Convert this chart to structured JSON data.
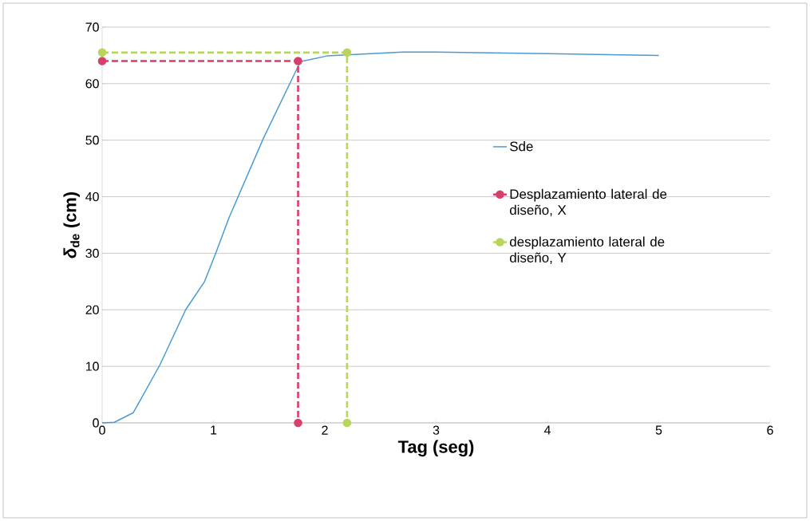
{
  "chart_data": {
    "type": "line",
    "xlabel": "Tag (seg)",
    "ylabel": "*δ*$_{de}$ (cm)",
    "xlim": [
      0,
      6
    ],
    "xticks": [
      0,
      1,
      2,
      3,
      4,
      5,
      6
    ],
    "ylim": [
      0,
      70
    ],
    "yticks": [
      0,
      10,
      20,
      30,
      40,
      50,
      60,
      70
    ],
    "grid": "y",
    "legend": "right",
    "series": [
      {
        "name": "Sde",
        "color": "#4a9bd4",
        "line_style": "solid",
        "marker": "none",
        "x": [
          0,
          0.11,
          0.28,
          0.52,
          0.75,
          0.92,
          1.02,
          1.14,
          1.45,
          1.71,
          1.78,
          2.02,
          2.7,
          3,
          4,
          5
        ],
        "values": [
          0,
          0.1,
          1.8,
          10.3,
          20,
          25,
          30,
          36.3,
          50.4,
          61,
          63.9,
          64.9,
          65.6,
          65.6,
          65.3,
          65
        ]
      },
      {
        "name": "Desplazamiento lateral de diseño, X",
        "color": "#d6406a",
        "line_style": "dashed",
        "marker": "circle",
        "x": [
          0,
          1.76,
          1.76
        ],
        "values": [
          64,
          64,
          0
        ]
      },
      {
        "name": "desplazamiento lateral de diseño, Y",
        "color": "#b8d65a",
        "line_style": "dashed",
        "marker": "circle",
        "x": [
          0,
          2.2,
          2.2
        ],
        "values": [
          65.5,
          65.5,
          0
        ]
      }
    ]
  }
}
